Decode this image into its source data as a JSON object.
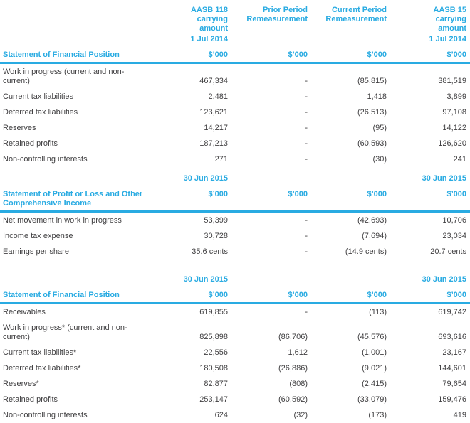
{
  "meta": {
    "accent": "#29ABE2",
    "text_color": "#414042"
  },
  "unit": "$’000",
  "date_2015": "30 Jun 2015",
  "column_headers": [
    {
      "lines": [
        "AASB 118",
        "carrying",
        "amount",
        "1 Jul 2014"
      ]
    },
    {
      "lines": [
        "Prior Period",
        "Remeasurement"
      ]
    },
    {
      "lines": [
        "Current Period",
        "Remeasurement"
      ]
    },
    {
      "lines": [
        "AASB 15",
        "carrying",
        "amount",
        "1 Jul 2014"
      ]
    }
  ],
  "section1": {
    "title": "Statement of Financial Position",
    "rows": [
      {
        "label": "Work in progress (current and non-current)",
        "v": [
          "467,334",
          "-",
          "(85,815)",
          "381,519"
        ]
      },
      {
        "label": "Current tax liabilities",
        "v": [
          "2,481",
          "-",
          "1,418",
          "3,899"
        ]
      },
      {
        "label": "Deferred tax liabilities",
        "v": [
          "123,621",
          "-",
          "(26,513)",
          "97,108"
        ]
      },
      {
        "label": "Reserves",
        "v": [
          "14,217",
          "-",
          "(95)",
          "14,122"
        ]
      },
      {
        "label": "Retained profits",
        "v": [
          "187,213",
          "-",
          "(60,593)",
          "126,620"
        ]
      },
      {
        "label": "Non-controlling interests",
        "v": [
          "271",
          "-",
          "(30)",
          "241"
        ]
      }
    ]
  },
  "section2": {
    "title": "Statement of Profit or Loss and Other Comprehensive Income",
    "rows": [
      {
        "label": "Net movement in work in progress",
        "v": [
          "53,399",
          "-",
          "(42,693)",
          "10,706"
        ]
      },
      {
        "label": "Income tax expense",
        "v": [
          "30,728",
          "-",
          "(7,694)",
          "23,034"
        ]
      },
      {
        "label": "Earnings per share",
        "v": [
          "35.6 cents",
          "-",
          "(14.9 cents)",
          "20.7 cents"
        ]
      }
    ]
  },
  "section3": {
    "title": "Statement of Financial Position",
    "rows": [
      {
        "label": "Receivables",
        "v": [
          "619,855",
          "-",
          "(113)",
          "619,742"
        ]
      },
      {
        "label": "Work in progress* (current and non-current)",
        "v": [
          "825,898",
          "(86,706)",
          "(45,576)",
          "693,616"
        ]
      },
      {
        "label": "Current tax liabilities*",
        "v": [
          "22,556",
          "1,612",
          "(1,001)",
          "23,167"
        ]
      },
      {
        "label": "Deferred tax liabilities*",
        "v": [
          "180,508",
          "(26,886)",
          "(9,021)",
          "144,601"
        ]
      },
      {
        "label": "Reserves*",
        "v": [
          "82,877",
          "(808)",
          "(2,415)",
          "79,654"
        ]
      },
      {
        "label": "Retained profits",
        "v": [
          "253,147",
          "(60,592)",
          "(33,079)",
          "159,476"
        ]
      },
      {
        "label": "Non-controlling interests",
        "v": [
          "624",
          "(32)",
          "(173)",
          "419"
        ]
      }
    ]
  }
}
